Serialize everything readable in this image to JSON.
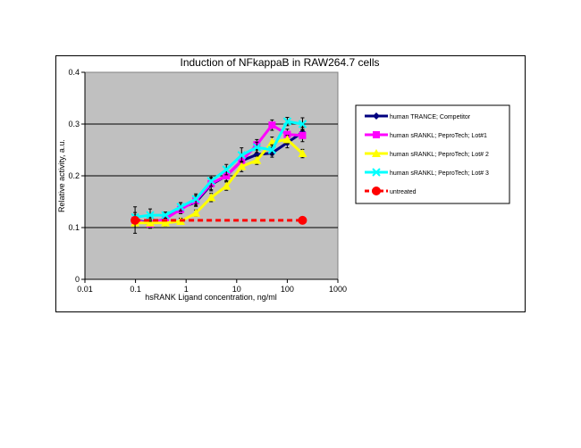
{
  "chart_data": {
    "type": "line",
    "title": "Induction of NFkappaB in RAW264.7 cells",
    "xlabel": "hsRANK Ligand concentration, ng/ml",
    "ylabel": "Relative activity, a.u.",
    "xscale": "log",
    "xlim": [
      0.01,
      1000
    ],
    "ylim": [
      0,
      0.4
    ],
    "xticks": [
      "0.01",
      "0.1",
      "1",
      "10",
      "100",
      "1000"
    ],
    "yticks": [
      "0",
      "0.1",
      "0.2",
      "0.3",
      "0.4"
    ],
    "grid": "horizontal",
    "legend_position": "right",
    "x": [
      0.098,
      0.195,
      0.39,
      0.78,
      1.56,
      3.125,
      6.25,
      12.5,
      25,
      50,
      100,
      200
    ],
    "series": [
      {
        "name": "human TRANCE; Competitor",
        "color": "#000080",
        "marker": "diamond",
        "values": [
          0.114,
          0.109,
          0.116,
          0.138,
          0.149,
          0.183,
          0.2,
          0.229,
          0.241,
          0.244,
          0.264,
          0.284
        ],
        "errors": [
          0.01,
          0.01,
          0.008,
          0.01,
          0.008,
          0.012,
          0.01,
          0.012,
          0.01,
          0.008,
          0.01,
          0.01
        ]
      },
      {
        "name": "human sRANKL; PeproTech; Lot#1",
        "color": "#ff00ff",
        "marker": "square",
        "values": [
          0.114,
          0.107,
          0.117,
          0.135,
          0.152,
          0.185,
          0.2,
          0.229,
          0.26,
          0.298,
          0.28,
          0.278
        ],
        "errors": [
          0.01,
          0.008,
          0.006,
          0.008,
          0.01,
          0.012,
          0.01,
          0.01,
          0.01,
          0.01,
          0.01,
          0.012
        ]
      },
      {
        "name": "human sRANKL; PeproTech; Lot# 2",
        "color": "#ffff00",
        "marker": "triangle",
        "values": [
          0.109,
          0.109,
          0.109,
          0.112,
          0.128,
          0.158,
          0.18,
          0.218,
          0.23,
          0.265,
          0.27,
          0.243
        ],
        "errors": [
          0.02,
          0.006,
          0.006,
          0.006,
          0.006,
          0.008,
          0.008,
          0.01,
          0.008,
          0.01,
          0.008,
          0.008
        ]
      },
      {
        "name": "human sRANKL; PeproTech; Lot# 3",
        "color": "#00ffff",
        "marker": "x",
        "values": [
          0.12,
          0.124,
          0.124,
          0.14,
          0.155,
          0.19,
          0.212,
          0.24,
          0.255,
          0.25,
          0.305,
          0.3
        ],
        "errors": [
          0.02,
          0.012,
          0.006,
          0.008,
          0.01,
          0.01,
          0.01,
          0.014,
          0.01,
          0.01,
          0.008,
          0.012
        ]
      },
      {
        "name": "untreated",
        "color": "#ff0000",
        "marker": "circle",
        "dashed": true,
        "x": [
          0.098,
          200
        ],
        "values": [
          0.114,
          0.114
        ]
      }
    ]
  }
}
